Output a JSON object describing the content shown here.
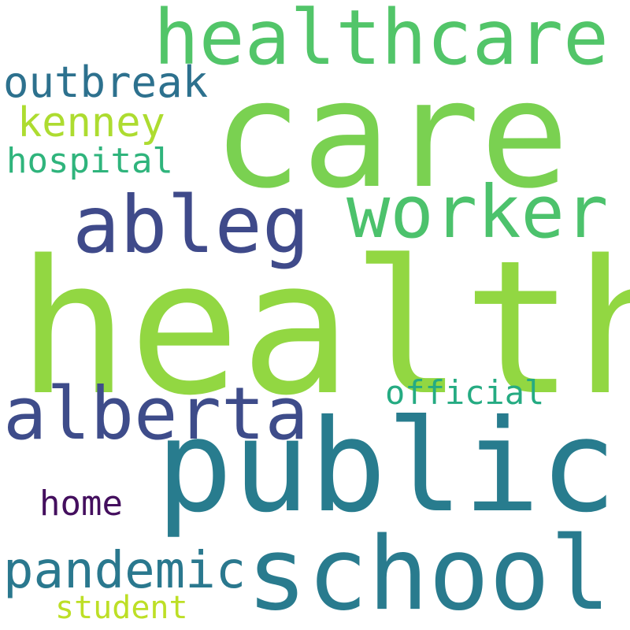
{
  "words": {
    "health": {
      "text": "health",
      "color": "#92d742"
    },
    "care": {
      "text": "care",
      "color": "#7ad151"
    },
    "public": {
      "text": "public",
      "color": "#287c8e"
    },
    "healthcare": {
      "text": "healthcare",
      "color": "#52c569"
    },
    "school": {
      "text": "school",
      "color": "#297b8e"
    },
    "worker": {
      "text": "worker",
      "color": "#4cc26c"
    },
    "ableg": {
      "text": "ableg",
      "color": "#3f4a8a"
    },
    "alberta": {
      "text": "alberta",
      "color": "#3e4c8a"
    },
    "outbreak": {
      "text": "outbreak",
      "color": "#2d718e"
    },
    "kenney": {
      "text": "kenney",
      "color": "#addc30"
    },
    "hospital": {
      "text": "hospital",
      "color": "#2fb47c"
    },
    "official": {
      "text": "official",
      "color": "#25ab82"
    },
    "pandemic": {
      "text": "pandemic",
      "color": "#2a788e"
    },
    "home": {
      "text": "home",
      "color": "#440f5e"
    },
    "student": {
      "text": "student",
      "color": "#bddf26"
    }
  }
}
